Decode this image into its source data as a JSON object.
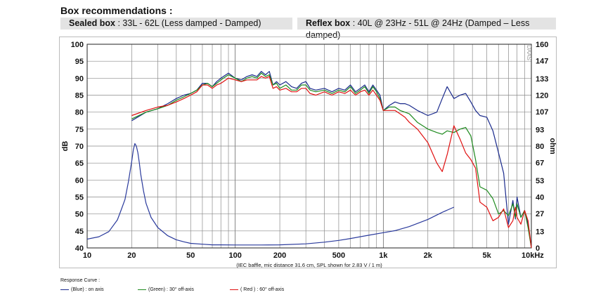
{
  "header": {
    "title": "Box recommendations :",
    "sealed_label": "Sealed box",
    "sealed_text": " : 33L - 62L (Less damped - Damped)",
    "reflex_label": "Reflex box",
    "reflex_text": " : 40L @ 23Hz - 51L @ 24Hz (Damped – Less damped)"
  },
  "legend": {
    "title": "Response Curve :",
    "blue": "(Blue)  : on axis",
    "green": "(Green) : 30° off-axis",
    "red": "( Red ) : 60° off-axis"
  },
  "chart_data": {
    "type": "line",
    "x_scale": "log",
    "xlim": [
      10,
      10000
    ],
    "ylim": [
      40,
      100
    ],
    "y2lim": [
      0,
      160
    ],
    "ylabel": "dB",
    "y2label": "ohm",
    "x_ticks": [
      10,
      20,
      50,
      100,
      200,
      500,
      1000,
      2000,
      5000,
      10000
    ],
    "x_tick_labels": [
      "10",
      "20",
      "50",
      "100",
      "200",
      "500",
      "1k",
      "2k",
      "5k",
      "10kHz"
    ],
    "y_ticks": [
      40,
      45,
      50,
      55,
      60,
      65,
      70,
      75,
      80,
      85,
      90,
      95,
      100
    ],
    "y2_ticks": [
      0,
      13,
      27,
      40,
      53,
      67,
      80,
      93,
      107,
      120,
      133,
      147,
      160
    ],
    "grid": true,
    "caption": "(IEC baffle, mic distance 31.6 cm, SPL shown for 2.83 V / 1 m)",
    "watermark": "DAAS",
    "colors": {
      "blue": "#1a2a8c",
      "green": "#1e8a1e",
      "red": "#e01010",
      "impedance": "#2a3a9c"
    },
    "series": [
      {
        "name": "(Blue)  : on axis",
        "color": "#1a2a8c",
        "axis": "left",
        "x": [
          20,
          25,
          30,
          35,
          40,
          45,
          50,
          55,
          60,
          65,
          70,
          75,
          80,
          90,
          100,
          110,
          120,
          130,
          140,
          150,
          160,
          170,
          180,
          190,
          200,
          220,
          240,
          260,
          280,
          300,
          320,
          350,
          400,
          450,
          500,
          550,
          600,
          650,
          700,
          750,
          800,
          850,
          900,
          950,
          1000,
          1100,
          1200,
          1300,
          1400,
          1500,
          1700,
          2000,
          2300,
          2500,
          2700,
          3000,
          3300,
          3600,
          3900,
          4200,
          4500,
          5000,
          5500,
          6000,
          6500,
          7000,
          7500,
          7800,
          8000,
          8500,
          9000,
          9500,
          10000
        ],
        "y": [
          77.5,
          80,
          81,
          82.5,
          84,
          85,
          85.5,
          86.5,
          88.5,
          88.5,
          87.5,
          89,
          90,
          91.5,
          90,
          89.5,
          90.5,
          91,
          90.5,
          92,
          91,
          92,
          88,
          89,
          88,
          89,
          87.5,
          87,
          88.5,
          89,
          87,
          86.5,
          87,
          86,
          87,
          86.5,
          88,
          86,
          87,
          88,
          86,
          88,
          86.5,
          85,
          80.5,
          82,
          83,
          82.5,
          82.5,
          82,
          80.5,
          79,
          80,
          84,
          87.5,
          84,
          85,
          85.5,
          83,
          80.5,
          79,
          78.5,
          74.5,
          68,
          62,
          47,
          54,
          48.5,
          55,
          49,
          51,
          47,
          40
        ]
      },
      {
        "name": "(Green) : 30° off-axis",
        "color": "#1e8a1e",
        "axis": "left",
        "x": [
          20,
          25,
          30,
          35,
          40,
          45,
          50,
          55,
          60,
          65,
          70,
          75,
          80,
          90,
          100,
          110,
          120,
          130,
          140,
          150,
          160,
          170,
          180,
          190,
          200,
          220,
          240,
          260,
          280,
          300,
          320,
          350,
          400,
          450,
          500,
          550,
          600,
          650,
          700,
          750,
          800,
          850,
          900,
          950,
          1000,
          1100,
          1200,
          1300,
          1400,
          1500,
          1700,
          2000,
          2300,
          2500,
          2700,
          3000,
          3300,
          3600,
          3900,
          4200,
          4500,
          5000,
          5500,
          6000,
          6500,
          7000,
          7500,
          7800,
          8000,
          8500,
          9000,
          9500,
          10000
        ],
        "y": [
          78,
          80,
          81,
          82,
          83.5,
          84.5,
          85.5,
          86.5,
          88,
          88.5,
          87.5,
          88.5,
          89.5,
          91,
          90,
          89,
          90,
          90.5,
          90,
          91.5,
          90.5,
          91,
          88,
          88.5,
          87,
          88,
          86.5,
          86.5,
          88,
          88,
          86.5,
          86,
          86.5,
          85.5,
          86.5,
          86,
          87.5,
          85.5,
          86.5,
          87.5,
          85.5,
          87.5,
          86,
          84,
          80.5,
          81.5,
          81.5,
          80.5,
          80,
          79.5,
          77,
          75,
          74,
          73.5,
          74.5,
          74,
          75,
          75.5,
          73,
          66,
          58,
          57,
          54.5,
          50,
          51,
          49.5,
          53,
          49,
          53,
          49,
          51,
          46,
          40
        ]
      },
      {
        "name": "( Red ) : 60° off-axis",
        "color": "#e01010",
        "axis": "left",
        "x": [
          20,
          25,
          30,
          35,
          40,
          45,
          50,
          55,
          60,
          65,
          70,
          75,
          80,
          90,
          100,
          110,
          120,
          130,
          140,
          150,
          160,
          170,
          180,
          190,
          200,
          220,
          240,
          260,
          280,
          300,
          320,
          350,
          400,
          450,
          500,
          550,
          600,
          650,
          700,
          750,
          800,
          850,
          900,
          950,
          1000,
          1100,
          1200,
          1300,
          1400,
          1500,
          1700,
          2000,
          2300,
          2500,
          2700,
          3000,
          3300,
          3600,
          3900,
          4200,
          4500,
          5000,
          5500,
          6000,
          6500,
          7000,
          7500,
          7800,
          8000,
          8500,
          9000,
          9500,
          10000
        ],
        "y": [
          79,
          80.5,
          81.5,
          82,
          83,
          84,
          85,
          86,
          88,
          88,
          87,
          88,
          88.5,
          90,
          89.5,
          89,
          89.5,
          89.5,
          89.5,
          90.5,
          90,
          90.5,
          87,
          87.5,
          86.5,
          87,
          86,
          86,
          87,
          87,
          85.5,
          85,
          86,
          85,
          86,
          85.5,
          86.5,
          85,
          86,
          86.5,
          85,
          86.5,
          85,
          83.5,
          80.5,
          80.5,
          80.5,
          79.5,
          78.5,
          77,
          75,
          71,
          65,
          62.5,
          67.5,
          76,
          72,
          68,
          66,
          63.5,
          53.5,
          52,
          48,
          49,
          51.5,
          46,
          48,
          52,
          49,
          47,
          51,
          48,
          40
        ]
      },
      {
        "name": "impedance",
        "color": "#2a3a9c",
        "axis": "right",
        "x": [
          10,
          12,
          14,
          16,
          17,
          18,
          19,
          20,
          20.5,
          21,
          21.5,
          22,
          22.5,
          23,
          24,
          25,
          27,
          30,
          35,
          40,
          45,
          50,
          60,
          70,
          80,
          100,
          150,
          200,
          300,
          400,
          500,
          600,
          800,
          1000,
          1200,
          1500,
          2000,
          2500,
          3000
        ],
        "y": [
          6.9,
          8.8,
          12.8,
          22,
          30,
          38,
          52,
          68,
          77,
          82,
          80,
          75,
          67,
          58,
          45,
          35,
          24,
          16,
          9.6,
          6.4,
          4.8,
          3.6,
          2.9,
          2.4,
          2.4,
          2.3,
          2.3,
          2.4,
          3.2,
          4.5,
          5.9,
          7.4,
          10,
          12,
          13.6,
          16.8,
          22.4,
          28,
          32
        ]
      }
    ]
  }
}
